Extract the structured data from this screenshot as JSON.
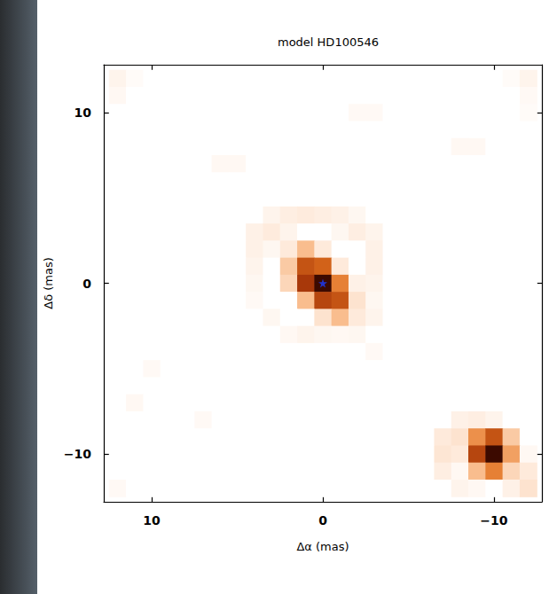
{
  "chart_data": {
    "type": "heatmap",
    "title": "model HD100546",
    "x_label": "Δα (mas)",
    "y_label": "Δδ (mas)",
    "xlim": [
      12.8,
      -12.8
    ],
    "ylim": [
      -12.8,
      12.8
    ],
    "xticks": [
      10,
      0,
      {
        "value": -10,
        "label": "−10"
      }
    ],
    "yticks": [
      {
        "value": -10,
        "label": "−10"
      },
      0,
      10
    ],
    "zlim": [
      0,
      100
    ],
    "x": [
      12,
      11,
      10,
      9,
      8,
      7,
      6,
      5,
      4,
      3,
      2,
      1,
      0,
      -1,
      -2,
      -3,
      -4,
      -5,
      -6,
      -7,
      -8,
      -9,
      -10,
      -11,
      -12
    ],
    "y": [
      12,
      11,
      10,
      9,
      8,
      7,
      6,
      5,
      4,
      3,
      2,
      1,
      0,
      -1,
      -2,
      -3,
      -4,
      -5,
      -6,
      -7,
      -8,
      -9,
      -10,
      -11,
      -12
    ],
    "cells": [
      [
        8,
        3,
        0,
        0,
        0,
        0,
        0,
        0,
        0,
        0,
        0,
        0,
        0,
        0,
        0,
        0,
        0,
        0,
        0,
        0,
        0,
        0,
        0,
        3,
        8
      ],
      [
        5,
        0,
        0,
        0,
        0,
        0,
        0,
        0,
        0,
        0,
        0,
        0,
        0,
        0,
        0,
        0,
        0,
        0,
        0,
        0,
        0,
        0,
        0,
        0,
        4
      ],
      [
        0,
        0,
        0,
        0,
        0,
        0,
        0,
        0,
        0,
        0,
        0,
        0,
        0,
        0,
        4,
        4,
        0,
        0,
        0,
        0,
        0,
        0,
        0,
        0,
        3
      ],
      [
        0,
        0,
        0,
        0,
        0,
        0,
        0,
        0,
        0,
        0,
        0,
        0,
        0,
        0,
        0,
        0,
        0,
        0,
        0,
        0,
        0,
        0,
        0,
        0,
        0
      ],
      [
        0,
        0,
        0,
        0,
        0,
        0,
        0,
        0,
        0,
        0,
        0,
        0,
        0,
        0,
        0,
        0,
        0,
        0,
        0,
        0,
        5,
        5,
        0,
        0,
        0
      ],
      [
        0,
        0,
        0,
        0,
        0,
        0,
        5,
        5,
        0,
        0,
        0,
        0,
        0,
        0,
        0,
        0,
        0,
        0,
        0,
        0,
        0,
        0,
        0,
        0,
        0
      ],
      [
        0,
        0,
        0,
        0,
        0,
        0,
        0,
        0,
        0,
        0,
        0,
        0,
        0,
        0,
        0,
        0,
        0,
        0,
        0,
        0,
        0,
        0,
        0,
        0,
        0
      ],
      [
        0,
        0,
        0,
        0,
        0,
        0,
        0,
        0,
        0,
        0,
        0,
        0,
        0,
        0,
        0,
        0,
        0,
        0,
        0,
        0,
        0,
        0,
        0,
        0,
        0
      ],
      [
        0,
        0,
        0,
        0,
        0,
        0,
        0,
        0,
        0,
        8,
        12,
        14,
        12,
        10,
        6,
        0,
        0,
        0,
        0,
        0,
        0,
        0,
        0,
        0,
        0
      ],
      [
        0,
        0,
        0,
        0,
        0,
        0,
        0,
        0,
        10,
        14,
        8,
        0,
        0,
        6,
        12,
        8,
        0,
        0,
        0,
        0,
        0,
        0,
        0,
        0,
        0
      ],
      [
        0,
        0,
        0,
        0,
        0,
        0,
        0,
        0,
        10,
        6,
        15,
        35,
        15,
        0,
        0,
        10,
        0,
        0,
        0,
        0,
        0,
        0,
        0,
        0,
        0
      ],
      [
        0,
        0,
        0,
        0,
        0,
        0,
        0,
        0,
        8,
        0,
        30,
        70,
        65,
        15,
        0,
        10,
        0,
        0,
        0,
        0,
        0,
        0,
        0,
        0,
        0
      ],
      [
        0,
        0,
        0,
        0,
        0,
        0,
        0,
        0,
        6,
        0,
        25,
        80,
        100,
        55,
        10,
        8,
        0,
        0,
        0,
        0,
        0,
        0,
        0,
        0,
        0
      ],
      [
        0,
        0,
        0,
        0,
        0,
        0,
        0,
        0,
        4,
        0,
        0,
        35,
        75,
        70,
        20,
        6,
        0,
        0,
        0,
        0,
        0,
        0,
        0,
        0,
        0
      ],
      [
        0,
        0,
        0,
        0,
        0,
        0,
        0,
        0,
        0,
        6,
        0,
        0,
        20,
        35,
        15,
        8,
        0,
        0,
        0,
        0,
        0,
        0,
        0,
        0,
        0
      ],
      [
        0,
        0,
        0,
        0,
        0,
        0,
        0,
        0,
        0,
        0,
        5,
        8,
        6,
        5,
        6,
        0,
        0,
        0,
        0,
        0,
        0,
        0,
        0,
        0,
        0
      ],
      [
        0,
        0,
        0,
        0,
        0,
        0,
        0,
        0,
        0,
        0,
        0,
        0,
        0,
        0,
        0,
        4,
        0,
        0,
        0,
        0,
        0,
        0,
        0,
        0,
        0
      ],
      [
        0,
        0,
        4,
        0,
        0,
        0,
        0,
        0,
        0,
        0,
        0,
        0,
        0,
        0,
        0,
        0,
        0,
        0,
        0,
        0,
        0,
        0,
        0,
        0,
        0
      ],
      [
        0,
        0,
        0,
        0,
        0,
        0,
        0,
        0,
        0,
        0,
        0,
        0,
        0,
        0,
        0,
        0,
        0,
        0,
        0,
        0,
        0,
        0,
        0,
        0,
        0
      ],
      [
        0,
        5,
        0,
        0,
        0,
        0,
        0,
        0,
        0,
        0,
        0,
        0,
        0,
        0,
        0,
        0,
        0,
        0,
        0,
        0,
        0,
        0,
        0,
        0,
        0
      ],
      [
        0,
        0,
        0,
        0,
        0,
        4,
        0,
        0,
        0,
        0,
        0,
        0,
        0,
        0,
        0,
        0,
        0,
        0,
        0,
        0,
        10,
        12,
        8,
        0,
        0
      ],
      [
        0,
        0,
        0,
        0,
        0,
        0,
        0,
        0,
        0,
        0,
        0,
        0,
        0,
        0,
        0,
        0,
        0,
        0,
        0,
        15,
        20,
        50,
        70,
        30,
        0
      ],
      [
        0,
        0,
        0,
        0,
        0,
        0,
        0,
        0,
        0,
        0,
        0,
        0,
        0,
        0,
        0,
        0,
        0,
        0,
        0,
        18,
        15,
        75,
        100,
        45,
        5
      ],
      [
        0,
        0,
        0,
        0,
        0,
        0,
        0,
        0,
        0,
        0,
        0,
        0,
        0,
        0,
        0,
        0,
        0,
        0,
        0,
        12,
        5,
        35,
        55,
        25,
        15
      ],
      [
        4,
        0,
        0,
        0,
        0,
        0,
        0,
        0,
        0,
        0,
        0,
        0,
        0,
        0,
        0,
        0,
        0,
        0,
        0,
        0,
        8,
        5,
        0,
        10,
        20
      ]
    ],
    "points": [
      {
        "x": 0,
        "y": 0,
        "color": "#1a3cff",
        "marker": "star"
      }
    ],
    "grid": false
  }
}
